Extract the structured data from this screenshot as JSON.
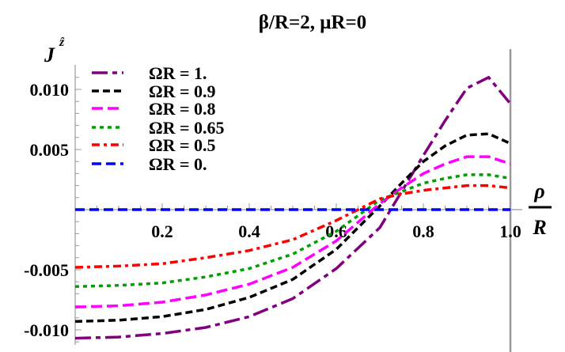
{
  "chart_data": {
    "type": "line",
    "title": "β/R=2, μR=0",
    "xlabel_num": "ρ",
    "xlabel_den": "R",
    "ylabel": "J",
    "ylabel_sup": "ẑ",
    "xlim": [
      0,
      1.0
    ],
    "ylim": [
      -0.0108,
      0.0115
    ],
    "x_ticks": [
      "0.2",
      "0.4",
      "0.6",
      "0.8",
      "1.0"
    ],
    "x_tick_values": [
      0.2,
      0.4,
      0.6,
      0.8,
      1.0
    ],
    "y_ticks": [
      "0.010",
      "0.005",
      "-0.005",
      "-0.010"
    ],
    "y_tick_values": [
      0.01,
      0.005,
      -0.005,
      -0.01
    ],
    "grid": false,
    "legend_position": "top-left",
    "x": [
      0,
      0.1,
      0.2,
      0.3,
      0.4,
      0.5,
      0.6,
      0.7,
      0.75,
      0.8,
      0.85,
      0.9,
      0.95,
      1.0
    ],
    "series": [
      {
        "name": "ΩR = 1.",
        "color": "#800080",
        "dash": "20 6 6 6",
        "values": [
          -0.0107,
          -0.0106,
          -0.0103,
          -0.0098,
          -0.0089,
          -0.0074,
          -0.0049,
          -0.0015,
          0.0015,
          0.0045,
          0.0074,
          0.0101,
          0.011,
          0.0088
        ]
      },
      {
        "name": "ΩR = 0.9",
        "color": "#000000",
        "dash": "9 5",
        "values": [
          -0.0093,
          -0.0092,
          -0.0089,
          -0.0083,
          -0.0073,
          -0.0058,
          -0.0033,
          0.0003,
          0.0022,
          0.004,
          0.0053,
          0.0062,
          0.0063,
          0.0055
        ]
      },
      {
        "name": "ΩR = 0.8",
        "color": "#ff00ff",
        "dash": "14 6",
        "values": [
          -0.0081,
          -0.008,
          -0.0077,
          -0.0071,
          -0.0062,
          -0.0048,
          -0.0026,
          0.0005,
          0.0018,
          0.003,
          0.0038,
          0.0044,
          0.0044,
          0.0038
        ]
      },
      {
        "name": "ΩR = 0.65",
        "color": "#00a000",
        "dash": "5 5",
        "values": [
          -0.0064,
          -0.0063,
          -0.0061,
          -0.0056,
          -0.0049,
          -0.0037,
          -0.0018,
          0.0008,
          0.0015,
          0.0022,
          0.0026,
          0.0029,
          0.0029,
          0.0026
        ]
      },
      {
        "name": "ΩR = 0.5",
        "color": "#ff0000",
        "dash": "10 5 4 5",
        "values": [
          -0.0048,
          -0.0047,
          -0.0045,
          -0.004,
          -0.0034,
          -0.0025,
          -0.0009,
          0.0009,
          0.0013,
          0.0016,
          0.0018,
          0.002,
          0.002,
          0.0018
        ]
      },
      {
        "name": "ΩR = 0.",
        "color": "#0000ff",
        "dash": "12 6",
        "values": [
          0,
          0,
          0,
          0,
          0,
          0,
          0,
          0,
          0,
          0,
          0,
          0,
          0,
          0
        ]
      }
    ]
  }
}
